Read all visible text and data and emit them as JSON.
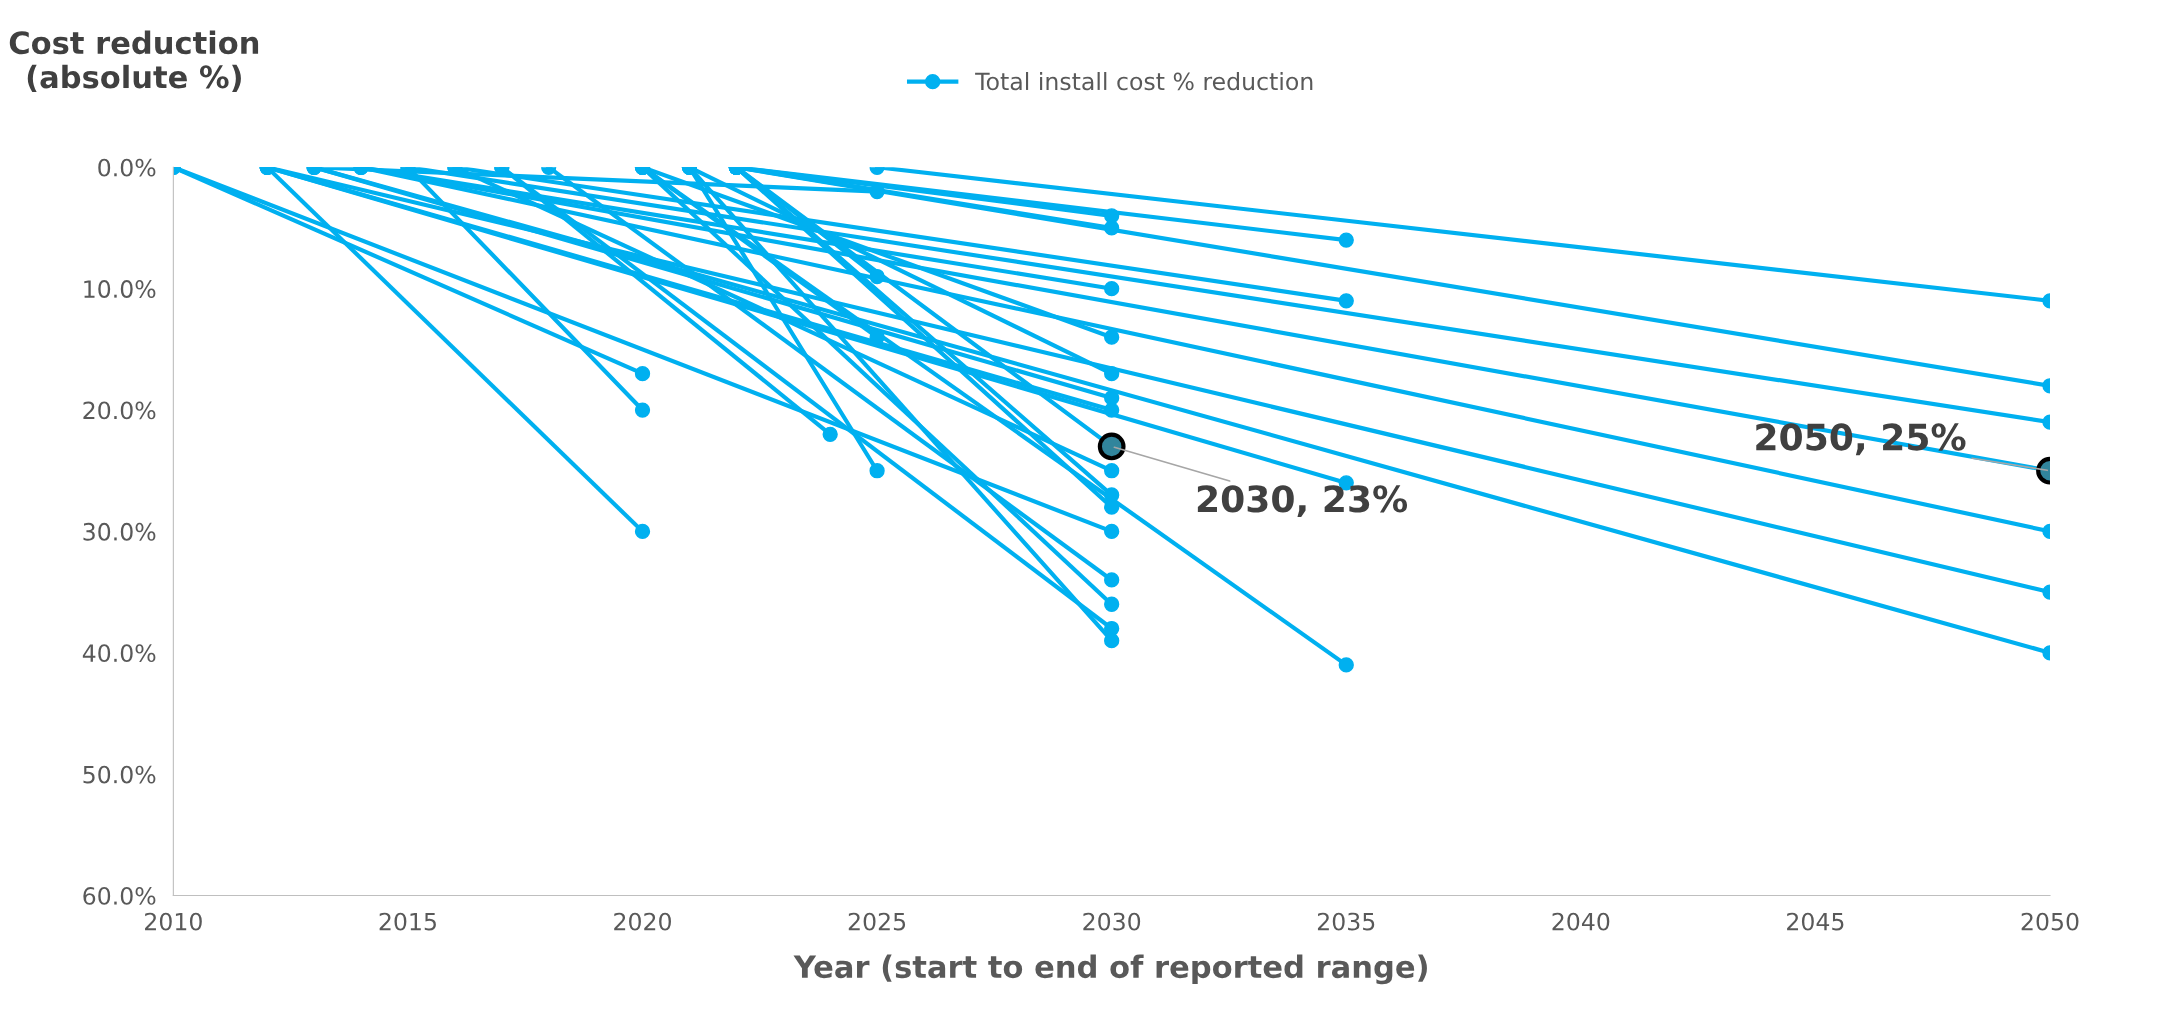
{
  "chart_data": {
    "type": "line",
    "xlabel": "Year (start to end of reported range)",
    "ylabel": "Cost reduction\n(absolute %)",
    "series": [
      {
        "name": "Total install cost % reduction",
        "color": "#00b0f0",
        "x": [
          2010,
          2020
        ],
        "values": [
          0,
          17
        ]
      },
      {
        "color": "#00b0f0",
        "x": [
          2010,
          2030
        ],
        "values": [
          0,
          30
        ]
      },
      {
        "color": "#00b0f0",
        "x": [
          2012,
          2020
        ],
        "values": [
          0,
          30
        ]
      },
      {
        "color": "#00b0f0",
        "x": [
          2012,
          2030
        ],
        "values": [
          0,
          20
        ]
      },
      {
        "color": "#00b0f0",
        "x": [
          2012,
          2035
        ],
        "values": [
          0,
          26
        ]
      },
      {
        "color": "#00b0f0",
        "x": [
          2012,
          2050
        ],
        "values": [
          0,
          35
        ]
      },
      {
        "color": "#00b0f0",
        "x": [
          2013,
          2030
        ],
        "values": [
          0,
          19
        ]
      },
      {
        "color": "#00b0f0",
        "x": [
          2013,
          2050
        ],
        "values": [
          0,
          40
        ]
      },
      {
        "color": "#00b0f0",
        "x": [
          2014,
          2030
        ],
        "values": [
          0,
          10
        ]
      },
      {
        "color": "#00b0f0",
        "x": [
          2014,
          2050
        ],
        "values": [
          0,
          30
        ]
      },
      {
        "color": "#00b0f0",
        "x": [
          2014,
          2050
        ],
        "values": [
          0,
          25
        ]
      },
      {
        "color": "#00b0f0",
        "x": [
          2015,
          2020
        ],
        "values": [
          0,
          20
        ]
      },
      {
        "color": "#00b0f0",
        "x": [
          2015,
          2050
        ],
        "values": [
          0,
          21
        ]
      },
      {
        "color": "#00b0f0",
        "x": [
          2016,
          2030
        ],
        "values": [
          0,
          25
        ]
      },
      {
        "color": "#00b0f0",
        "x": [
          2016,
          2035
        ],
        "values": [
          0,
          11
        ]
      },
      {
        "color": "#00b0f0",
        "x": [
          2017,
          2030
        ],
        "values": [
          0,
          38
        ]
      },
      {
        "color": "#00b0f0",
        "x": [
          2017,
          2024
        ],
        "values": [
          0,
          22
        ]
      },
      {
        "color": "#00b0f0",
        "x": [
          2018,
          2030
        ],
        "values": [
          0,
          34
        ]
      },
      {
        "color": "#00b0f0",
        "x": [
          2020,
          2030
        ],
        "values": [
          0,
          36
        ]
      },
      {
        "color": "#00b0f0",
        "x": [
          2020,
          2035
        ],
        "values": [
          0,
          41
        ]
      },
      {
        "color": "#00b0f0",
        "x": [
          2020,
          2030
        ],
        "values": [
          0,
          14
        ]
      },
      {
        "color": "#00b0f0",
        "x": [
          2020,
          2025
        ],
        "values": [
          0,
          14
        ]
      },
      {
        "color": "#00b0f0",
        "x": [
          2021,
          2025
        ],
        "values": [
          0,
          25
        ]
      },
      {
        "color": "#00b0f0",
        "x": [
          2021,
          2030
        ],
        "values": [
          0,
          39
        ]
      },
      {
        "color": "#00b0f0",
        "x": [
          2021,
          2030
        ],
        "values": [
          0,
          17
        ]
      },
      {
        "color": "#00b0f0",
        "x": [
          2022,
          2025
        ],
        "values": [
          0,
          9
        ]
      },
      {
        "color": "#00b0f0",
        "x": [
          2022,
          2030
        ],
        "values": [
          0,
          27
        ]
      },
      {
        "color": "#00b0f0",
        "x": [
          2022,
          2030
        ],
        "values": [
          0,
          28
        ]
      },
      {
        "color": "#00b0f0",
        "x": [
          2022,
          2030
        ],
        "values": [
          0,
          23
        ]
      },
      {
        "color": "#00b0f0",
        "x": [
          2022,
          2050
        ],
        "values": [
          0,
          18
        ]
      },
      {
        "color": "#00b0f0",
        "x": [
          2022,
          2030
        ],
        "values": [
          0,
          4
        ]
      },
      {
        "color": "#00b0f0",
        "x": [
          2022,
          2030
        ],
        "values": [
          0,
          5
        ]
      },
      {
        "color": "#00b0f0",
        "x": [
          2022,
          2035
        ],
        "values": [
          0,
          6
        ]
      },
      {
        "color": "#00b0f0",
        "x": [
          2025,
          2050
        ],
        "values": [
          0,
          11
        ]
      },
      {
        "color": "#00b0f0",
        "x": [
          2013,
          2025
        ],
        "values": [
          0,
          2
        ]
      }
    ],
    "xlim": [
      2010,
      2050
    ],
    "xticks": [
      2010,
      2015,
      2020,
      2025,
      2030,
      2035,
      2040,
      2045,
      2050
    ],
    "ylim": [
      60,
      0
    ],
    "yticks": [
      {
        "value": 0,
        "label": "0.0%"
      },
      {
        "value": 10,
        "label": "10.0%"
      },
      {
        "value": 20,
        "label": "20.0%"
      },
      {
        "value": 30,
        "label": "30.0%"
      },
      {
        "value": 40,
        "label": "40.0%"
      },
      {
        "value": 50,
        "label": "50.0%"
      },
      {
        "value": 60,
        "label": "60.0%"
      }
    ],
    "annotations": [
      {
        "text": "2030, 23%",
        "x": 2030,
        "y": 23
      },
      {
        "text": "2050, 25%",
        "x": 2050,
        "y": 25
      }
    ],
    "marker": "circle",
    "line_style": "solid",
    "grid": false,
    "legend": "top"
  }
}
